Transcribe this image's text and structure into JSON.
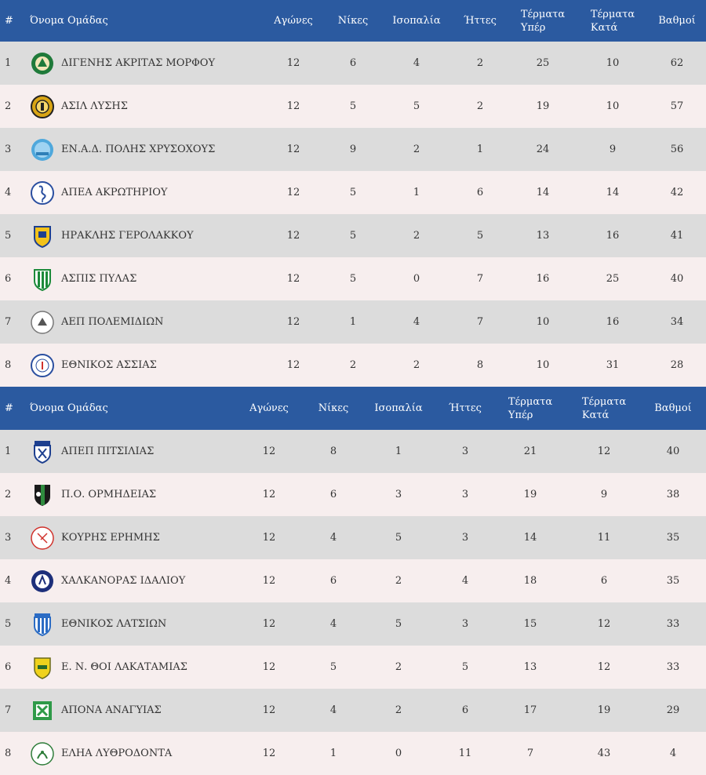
{
  "headers": {
    "rank": "#",
    "team": "Όνομα Ομάδας",
    "played": "Αγώνες",
    "wins": "Νίκες",
    "draws": "Ισοπαλία",
    "losses": "Ήττες",
    "goals_for_1": "Τέρματα",
    "goals_for_2": "Υπέρ",
    "goals_against_1": "Τέρματα",
    "goals_against_2": "Κατά",
    "points": "Βαθμοί"
  },
  "group1": [
    {
      "rank": "1",
      "team": "ΔΙΓΕΝΗΣ ΑΚΡΙΤΑΣ ΜΟΡΦΟΥ",
      "played": "12",
      "wins": "6",
      "draws": "4",
      "losses": "2",
      "gf": "25",
      "ga": "10",
      "pts": "62",
      "logo": "green-white-crest-icon"
    },
    {
      "rank": "2",
      "team": "ΑΣΙΛ ΛΥΣΗΣ",
      "played": "12",
      "wins": "5",
      "draws": "5",
      "losses": "2",
      "gf": "19",
      "ga": "10",
      "pts": "57",
      "logo": "gold-black-round-badge-icon"
    },
    {
      "rank": "3",
      "team": "ΕΝ.Α.Δ. ΠΟΛΗΣ ΧΡΥΣΟΧΟΥΣ",
      "played": "12",
      "wins": "9",
      "draws": "2",
      "losses": "1",
      "gf": "24",
      "ga": "9",
      "pts": "56",
      "logo": "light-blue-round-badge-icon"
    },
    {
      "rank": "4",
      "team": "ΑΠΕΑ ΑΚΡΩΤΗΡΙΟΥ",
      "played": "12",
      "wins": "5",
      "draws": "1",
      "losses": "6",
      "gf": "14",
      "ga": "14",
      "pts": "42",
      "logo": "flamingo-round-badge-icon"
    },
    {
      "rank": "5",
      "team": "ΗΡΑΚΛΗΣ ΓΕΡΟΛΑΚΚΟΥ",
      "played": "12",
      "wins": "5",
      "draws": "2",
      "losses": "5",
      "gf": "13",
      "ga": "16",
      "pts": "41",
      "logo": "yellow-blue-shield-icon"
    },
    {
      "rank": "6",
      "team": "ΑΣΠΙΣ ΠΥΛΑΣ",
      "played": "12",
      "wins": "5",
      "draws": "0",
      "losses": "7",
      "gf": "16",
      "ga": "25",
      "pts": "40",
      "logo": "green-striped-shield-icon"
    },
    {
      "rank": "7",
      "team": "ΑΕΠ ΠΟΛΕΜΙΔΙΩΝ",
      "played": "12",
      "wins": "1",
      "draws": "4",
      "losses": "7",
      "gf": "10",
      "ga": "16",
      "pts": "34",
      "logo": "white-round-badge-icon"
    },
    {
      "rank": "8",
      "team": "ΕΘΝΙΚΟΣ ΑΣΣΙΑΣ",
      "played": "12",
      "wins": "2",
      "draws": "2",
      "losses": "8",
      "gf": "10",
      "ga": "31",
      "pts": "28",
      "logo": "blue-white-round-badge-icon"
    }
  ],
  "group2": [
    {
      "rank": "1",
      "team": "ΑΠΕΠ ΠΙΤΣΙΛΙΑΣ",
      "played": "12",
      "wins": "8",
      "draws": "1",
      "losses": "3",
      "gf": "21",
      "ga": "12",
      "pts": "40",
      "logo": "blue-white-shield-icon"
    },
    {
      "rank": "2",
      "team": "Π.Ο. ΟΡΜΗΔΕΙΑΣ",
      "played": "12",
      "wins": "6",
      "draws": "3",
      "losses": "3",
      "gf": "19",
      "ga": "9",
      "pts": "38",
      "logo": "black-green-shield-icon"
    },
    {
      "rank": "3",
      "team": "ΚΟΥΡΗΣ ΕΡΗΜΗΣ",
      "played": "12",
      "wins": "4",
      "draws": "5",
      "losses": "3",
      "gf": "14",
      "ga": "11",
      "pts": "35",
      "logo": "red-outline-round-badge-icon"
    },
    {
      "rank": "4",
      "team": "ΧΑΛΚΑΝΟΡΑΣ ΙΔΑΛΙΟΥ",
      "played": "12",
      "wins": "6",
      "draws": "2",
      "losses": "4",
      "gf": "18",
      "ga": "6",
      "pts": "35",
      "logo": "navy-round-badge-icon"
    },
    {
      "rank": "5",
      "team": "ΕΘΝΙΚΟΣ ΛΑΤΣΙΩΝ",
      "played": "12",
      "wins": "4",
      "draws": "5",
      "losses": "3",
      "gf": "15",
      "ga": "12",
      "pts": "33",
      "logo": "blue-striped-shield-icon"
    },
    {
      "rank": "6",
      "team": "Ε. Ν. ΘΟΙ ΛΑΚΑΤΑΜΙΑΣ",
      "played": "12",
      "wins": "5",
      "draws": "2",
      "losses": "5",
      "gf": "13",
      "ga": "12",
      "pts": "33",
      "logo": "yellow-shield-icon"
    },
    {
      "rank": "7",
      "team": "ΑΠΟΝΑ ΑΝΑΓΥΙΑΣ",
      "played": "12",
      "wins": "4",
      "draws": "2",
      "losses": "6",
      "gf": "17",
      "ga": "19",
      "pts": "29",
      "logo": "green-square-badge-icon"
    },
    {
      "rank": "8",
      "team": "ΕΛΗΑ ΛΥΘΡΟΔΟΝΤΑ",
      "played": "12",
      "wins": "1",
      "draws": "0",
      "losses": "11",
      "gf": "7",
      "ga": "43",
      "pts": "4",
      "logo": "green-olive-round-badge-icon"
    }
  ],
  "colors": {
    "header_bg": "#2b5aa0",
    "row_dark": "#dcdcdc",
    "row_light": "#f7eeee"
  }
}
